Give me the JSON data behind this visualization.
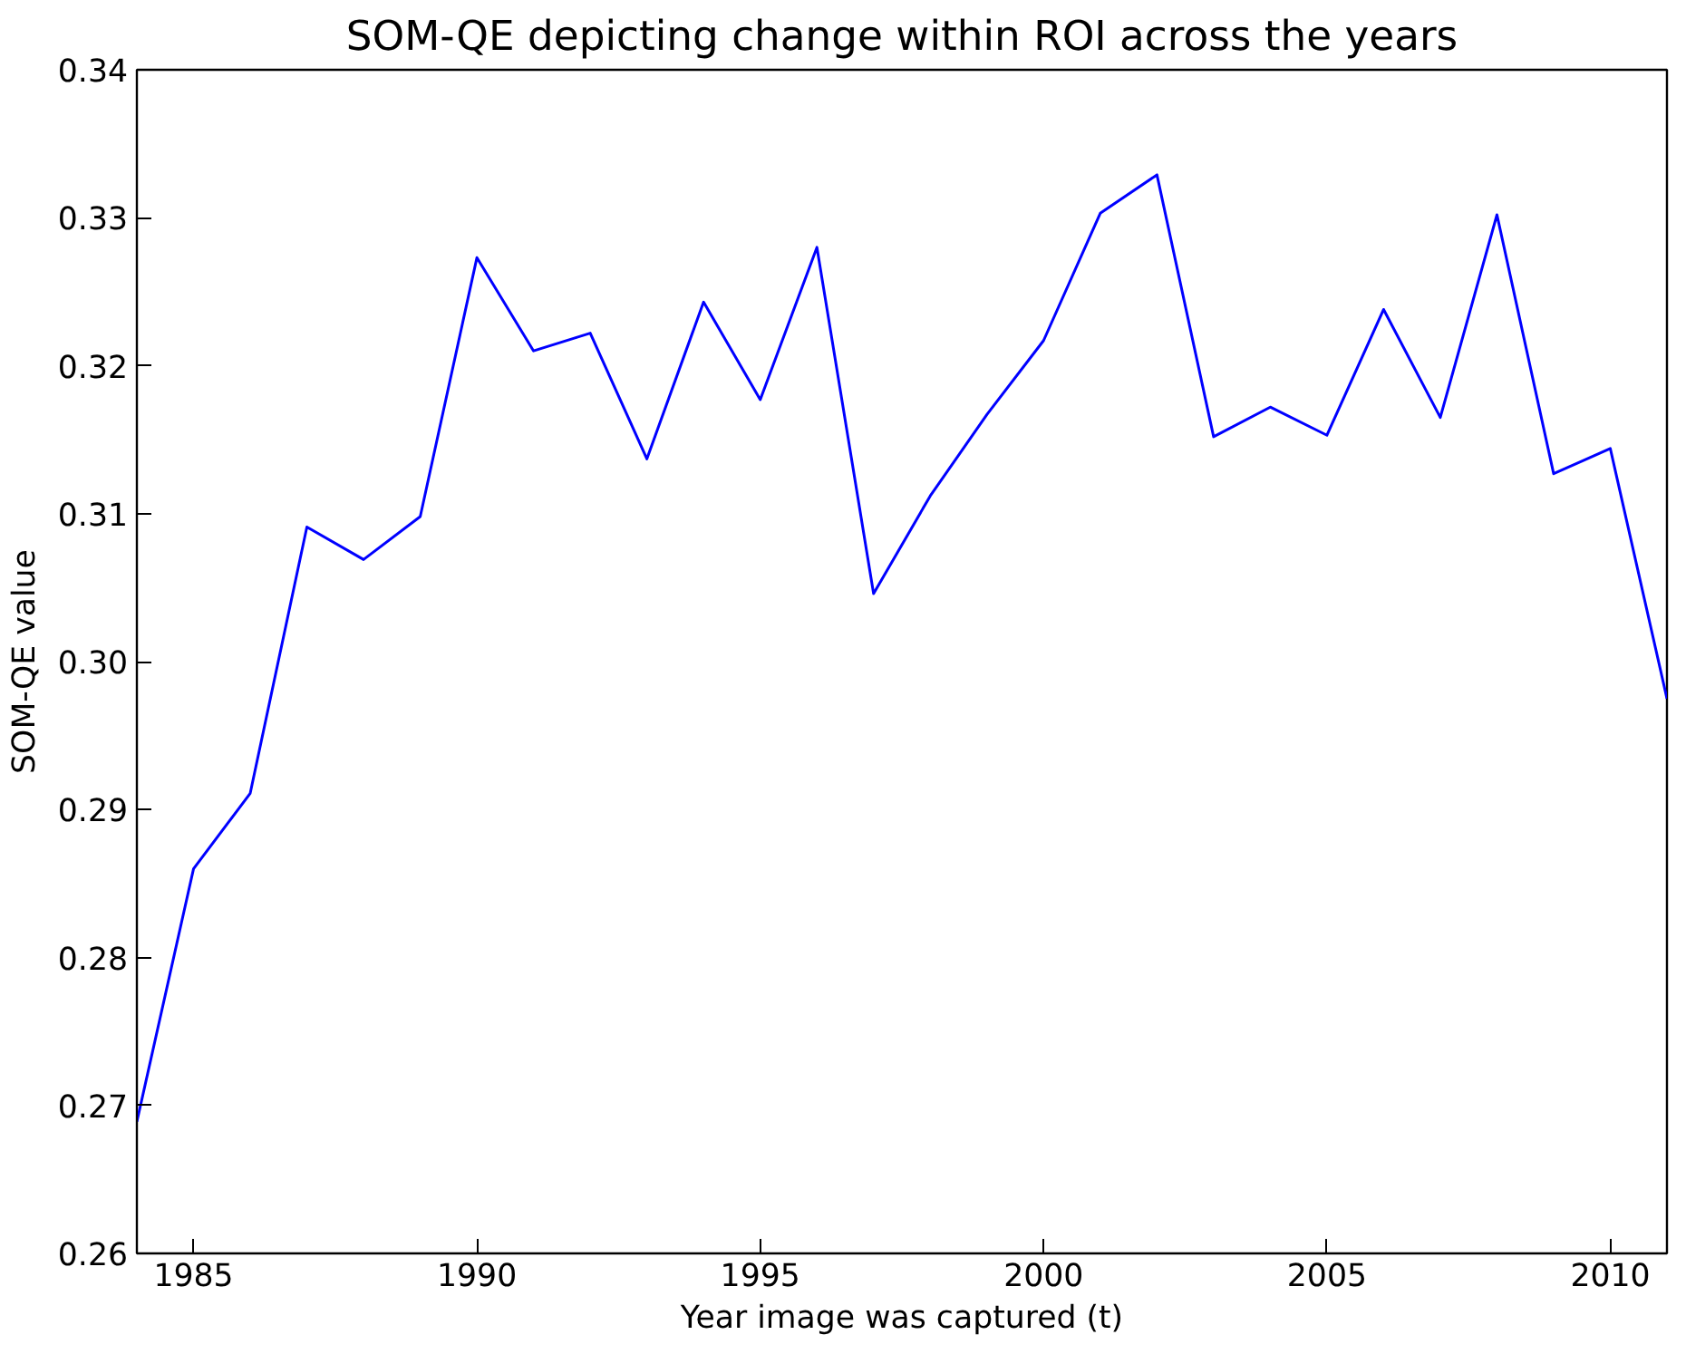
{
  "chart_data": {
    "type": "line",
    "title": "SOM-QE depicting change within ROI across the years",
    "xlabel": "Year image was captured (t)",
    "ylabel": "SOM-QE value",
    "x": [
      1984,
      1985,
      1986,
      1987,
      1988,
      1989,
      1990,
      1991,
      1992,
      1993,
      1994,
      1995,
      1996,
      1997,
      1998,
      1999,
      2000,
      2001,
      2002,
      2003,
      2004,
      2005,
      2006,
      2007,
      2008,
      2009,
      2010,
      2011
    ],
    "series": [
      {
        "color": "#0000ff",
        "values": [
          0.2689,
          0.286,
          0.2911,
          0.3091,
          0.3069,
          0.3098,
          0.3273,
          0.321,
          0.3222,
          0.3137,
          0.3243,
          0.3177,
          0.328,
          0.3046,
          0.3112,
          0.3167,
          0.3217,
          0.3303,
          0.3329,
          0.3152,
          0.3172,
          0.3153,
          0.3238,
          0.3165,
          0.3302,
          0.3127,
          0.3144,
          0.2975
        ]
      }
    ],
    "xlim": [
      1984,
      2011
    ],
    "xticks": [
      1985,
      1990,
      1995,
      2000,
      2005,
      2010
    ],
    "ylim": [
      0.26,
      0.34
    ],
    "yticks": [
      {
        "value": 0.26,
        "label": "0.26"
      },
      {
        "value": 0.27,
        "label": "0.27"
      },
      {
        "value": 0.28,
        "label": "0.28"
      },
      {
        "value": 0.29,
        "label": "0.29"
      },
      {
        "value": 0.3,
        "label": "0.30"
      },
      {
        "value": 0.31,
        "label": "0.31"
      },
      {
        "value": 0.32,
        "label": "0.32"
      },
      {
        "value": 0.33,
        "label": "0.33"
      },
      {
        "value": 0.34,
        "label": "0.34"
      }
    ],
    "grid": false,
    "marker": "none",
    "line_style": "solid"
  }
}
